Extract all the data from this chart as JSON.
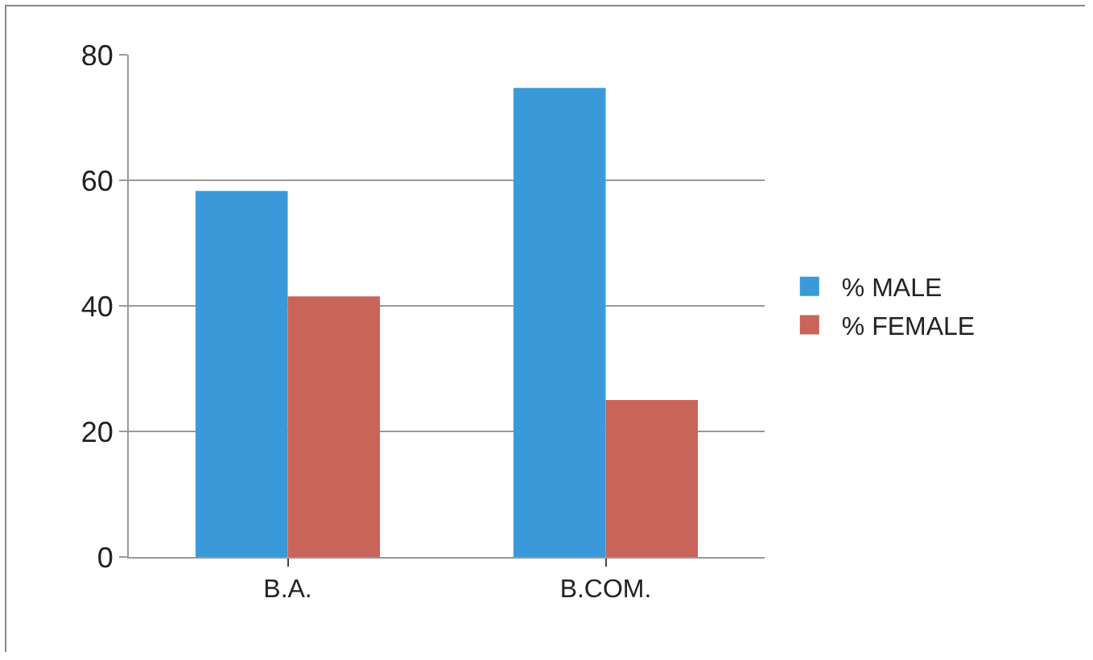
{
  "chart_data": {
    "type": "bar",
    "categories": [
      "B.A.",
      "B.COM."
    ],
    "series": [
      {
        "name": "% MALE",
        "color": "#3a9ad9",
        "values": [
          58.3,
          74.7
        ]
      },
      {
        "name": "% FEMALE",
        "color": "#c8645a",
        "values": [
          41.5,
          25
        ]
      }
    ],
    "ylim": [
      0,
      80
    ],
    "yticks": [
      0,
      20,
      40,
      60,
      80
    ],
    "grid": "y",
    "legend": "right"
  }
}
